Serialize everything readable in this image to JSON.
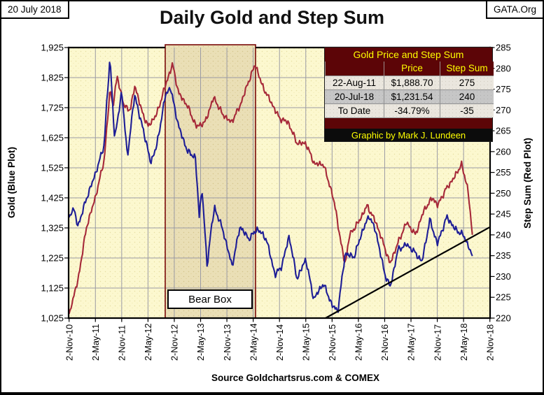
{
  "header": {
    "date": "20 July 2018",
    "title": "Daily Gold and Step Sum",
    "org": "GATA.Org"
  },
  "summary_table": {
    "title": "Gold Price and Step Sum",
    "columns": [
      "",
      "Price",
      "Step Sum"
    ],
    "rows": [
      [
        "22-Aug-11",
        "$1,888.70",
        "275"
      ],
      [
        "20-Jul-18",
        "$1,231.54",
        "240"
      ],
      [
        "To Date",
        "-34.79%",
        "-35"
      ]
    ],
    "credit": "Graphic by Mark J. Lundeen"
  },
  "footer": {
    "source": "Source Goldchartsrus.com & COMEX"
  },
  "chart_data": {
    "type": "line",
    "title": "Daily Gold and Step Sum",
    "background": "#fcf8cf",
    "grid": true,
    "gridline_color": "#9a9aa4",
    "x_axis": {
      "month_zero": "2010-11-02",
      "months_per_tick": 6,
      "tick_labels": [
        "2-Nov-10",
        "2-May-11",
        "2-Nov-11",
        "2-May-12",
        "2-Nov-12",
        "2-May-13",
        "2-Nov-13",
        "2-May-14",
        "2-Nov-14",
        "2-May-15",
        "2-Nov-15",
        "2-May-16",
        "2-Nov-16",
        "2-May-17",
        "2-Nov-17",
        "2-May-18",
        "2-Nov-18"
      ]
    },
    "left_axis": {
      "label": "Gold  (Blue Plot)",
      "min": 1025,
      "max": 1925,
      "tick_step": 100,
      "tick_labels": [
        "1,925",
        "1,825",
        "1,725",
        "1,625",
        "1,525",
        "1,425",
        "1,325",
        "1,225",
        "1,125",
        "1,025"
      ]
    },
    "right_axis": {
      "label": "Step Sum  (Red Plot)",
      "min": 220,
      "max": 285,
      "tick_step": 5,
      "tick_labels": [
        "285",
        "280",
        "275",
        "270",
        "265",
        "260",
        "255",
        "250",
        "245",
        "240",
        "235",
        "230",
        "225",
        "220"
      ]
    },
    "series": [
      {
        "name": "Step Sum",
        "axis": "right",
        "color": "#a62939",
        "points": [
          [
            0,
            221
          ],
          [
            2,
            229
          ],
          [
            4,
            242
          ],
          [
            6,
            249
          ],
          [
            8,
            258
          ],
          [
            9.35,
            275
          ],
          [
            10,
            271
          ],
          [
            11,
            278
          ],
          [
            12.5,
            271
          ],
          [
            14,
            270
          ],
          [
            15,
            276
          ],
          [
            16.5,
            270
          ],
          [
            18,
            266
          ],
          [
            20,
            269
          ],
          [
            22,
            276
          ],
          [
            23.6,
            281
          ],
          [
            25,
            274
          ],
          [
            27,
            271
          ],
          [
            29,
            266
          ],
          [
            31,
            267
          ],
          [
            33,
            273
          ],
          [
            35,
            269
          ],
          [
            37,
            267
          ],
          [
            39,
            271
          ],
          [
            41,
            277
          ],
          [
            42.5,
            281
          ],
          [
            44,
            276
          ],
          [
            46,
            272
          ],
          [
            48,
            268
          ],
          [
            50,
            267
          ],
          [
            52,
            262
          ],
          [
            54,
            262
          ],
          [
            56,
            257
          ],
          [
            58,
            257
          ],
          [
            60,
            250
          ],
          [
            61,
            245
          ],
          [
            62,
            238
          ],
          [
            63,
            233
          ],
          [
            64,
            240
          ],
          [
            66,
            243
          ],
          [
            68,
            247
          ],
          [
            70,
            243
          ],
          [
            72,
            237
          ],
          [
            73.2,
            233
          ],
          [
            75,
            238
          ],
          [
            77,
            243
          ],
          [
            79,
            240
          ],
          [
            81,
            246
          ],
          [
            83,
            249
          ],
          [
            84,
            247
          ],
          [
            86,
            251
          ],
          [
            88,
            254
          ],
          [
            89.5,
            257
          ],
          [
            91,
            251
          ],
          [
            92,
            240
          ]
        ]
      },
      {
        "name": "Gold",
        "axis": "left",
        "color": "#1e1e96",
        "points": [
          [
            0,
            1360
          ],
          [
            1,
            1392
          ],
          [
            2,
            1330
          ],
          [
            4,
            1424
          ],
          [
            6,
            1505
          ],
          [
            8,
            1600
          ],
          [
            8.6,
            1745
          ],
          [
            9.35,
            1889
          ],
          [
            10.4,
            1618
          ],
          [
            12,
            1780
          ],
          [
            13.3,
            1562
          ],
          [
            15,
            1772
          ],
          [
            16,
            1700
          ],
          [
            17,
            1648
          ],
          [
            18.6,
            1542
          ],
          [
            20,
            1598
          ],
          [
            22,
            1768
          ],
          [
            23.1,
            1792
          ],
          [
            25,
            1662
          ],
          [
            27,
            1580
          ],
          [
            28.8,
            1560
          ],
          [
            29.7,
            1362
          ],
          [
            30.3,
            1462
          ],
          [
            31.5,
            1195
          ],
          [
            32.3,
            1310
          ],
          [
            33.2,
            1392
          ],
          [
            35,
            1322
          ],
          [
            37.2,
            1198
          ],
          [
            39,
            1330
          ],
          [
            41,
            1288
          ],
          [
            43,
            1322
          ],
          [
            45,
            1288
          ],
          [
            47,
            1168
          ],
          [
            48.5,
            1198
          ],
          [
            50.2,
            1298
          ],
          [
            52,
            1155
          ],
          [
            54,
            1222
          ],
          [
            55.8,
            1088
          ],
          [
            58,
            1140
          ],
          [
            60,
            1068
          ],
          [
            61.3,
            1048
          ],
          [
            63,
            1240
          ],
          [
            65,
            1228
          ],
          [
            67,
            1318
          ],
          [
            68.5,
            1366
          ],
          [
            70,
            1312
          ],
          [
            72,
            1172
          ],
          [
            73.3,
            1128
          ],
          [
            75,
            1252
          ],
          [
            77,
            1270
          ],
          [
            79,
            1242
          ],
          [
            80.5,
            1212
          ],
          [
            82.3,
            1352
          ],
          [
            84,
            1272
          ],
          [
            86.2,
            1362
          ],
          [
            88,
            1322
          ],
          [
            90,
            1300
          ],
          [
            91,
            1268
          ],
          [
            92,
            1231.54
          ]
        ]
      }
    ],
    "annotations": {
      "bear_box": {
        "label": "Bear Box",
        "start_month": 21.93,
        "end_month": 42.54,
        "fill": "#eadfb6",
        "border": "#7a0a0a"
      },
      "trendline": {
        "axis": "right",
        "color": "#000000",
        "x1_month": 58.5,
        "y1": 220,
        "x2_month": 95.9,
        "y2": 241.8
      }
    }
  }
}
